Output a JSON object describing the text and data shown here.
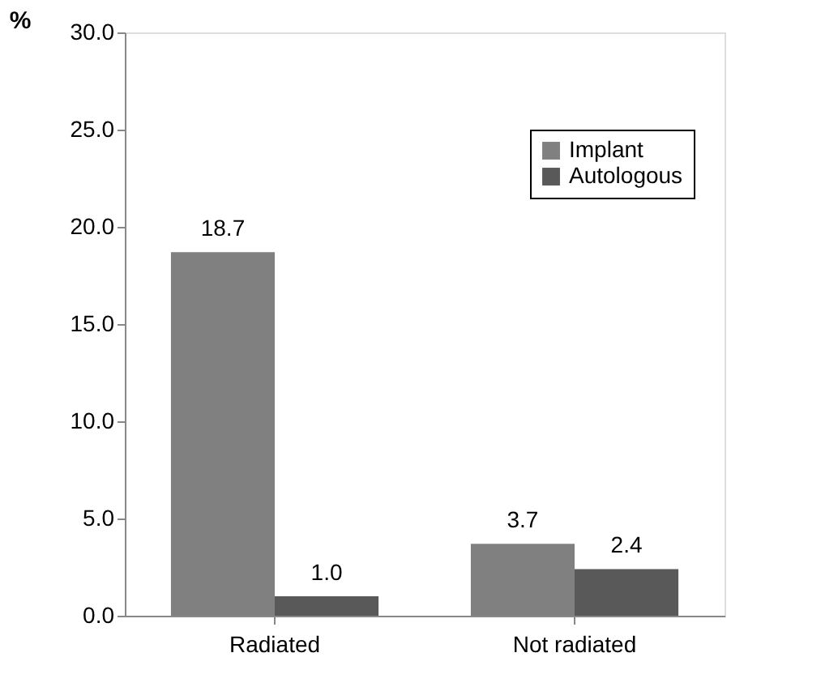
{
  "chart_data": {
    "type": "bar",
    "ylabel": "%",
    "categories": [
      "Radiated",
      "Not radiated"
    ],
    "series": [
      {
        "name": "Implant",
        "color": "#808080",
        "values": [
          18.7,
          3.7
        ],
        "value_labels": [
          "18.7",
          "3.7"
        ]
      },
      {
        "name": "Autologous",
        "color": "#595959",
        "values": [
          1.0,
          2.4
        ],
        "value_labels": [
          "1.0",
          "2.4"
        ]
      }
    ],
    "ylim": [
      0,
      30
    ],
    "yticks": [
      {
        "value": 0,
        "label": "0.0"
      },
      {
        "value": 5,
        "label": "5.0"
      },
      {
        "value": 10,
        "label": "10.0"
      },
      {
        "value": 15,
        "label": "15.0"
      },
      {
        "value": 20,
        "label": "20.0"
      },
      {
        "value": 25,
        "label": "25.0"
      },
      {
        "value": 30,
        "label": "30.0"
      }
    ],
    "grid": false,
    "legend": "top right"
  }
}
